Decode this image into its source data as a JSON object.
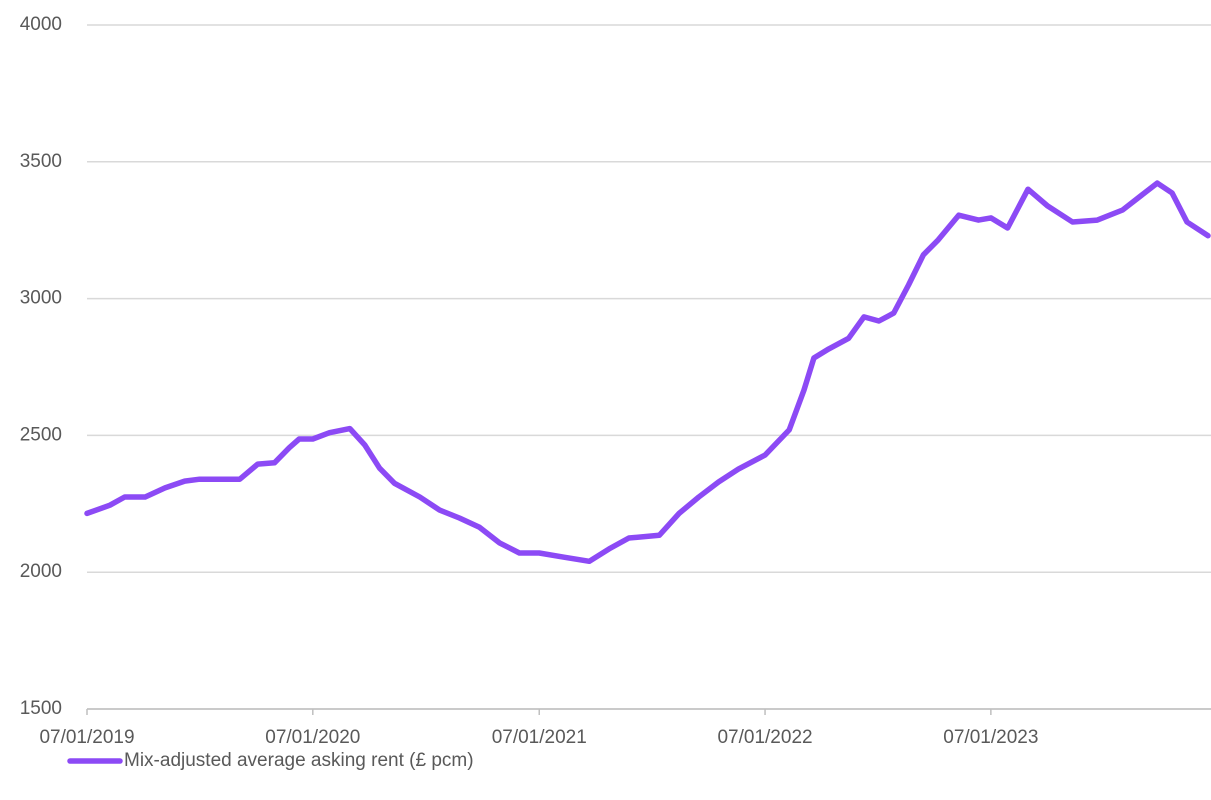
{
  "chart_data": {
    "type": "line",
    "x": [
      "07/01/2019",
      "13/02/2019",
      "09/03/2019",
      "11/04/2019",
      "13/05/2019",
      "14/06/2019",
      "08/07/2019",
      "11/09/2019",
      "10/10/2019",
      "06/11/2019",
      "30/11/2019",
      "16/12/2019",
      "07/01/2020",
      "03/02/2020",
      "07/03/2020",
      "31/03/2020",
      "24/04/2020",
      "18/05/2020",
      "28/06/2020",
      "30/07/2020",
      "31/08/2020",
      "02/10/2020",
      "04/11/2020",
      "06/12/2020",
      "07/01/2021",
      "16/02/2021",
      "29/03/2021",
      "30/04/2021",
      "01/06/2021",
      "20/07/2021",
      "21/08/2021",
      "22/09/2021",
      "24/10/2021",
      "25/11/2021",
      "07/01/2022",
      "15/02/2022",
      "11/03/2022",
      "27/03/2022",
      "20/04/2022",
      "22/05/2022",
      "16/06/2022",
      "10/07/2022",
      "03/08/2022",
      "27/08/2022",
      "20/09/2022",
      "14/10/2022",
      "16/11/2022",
      "18/12/2022",
      "07/01/2023",
      "03/02/2023",
      "08/03/2023",
      "09/04/2023",
      "19/05/2023",
      "28/06/2023",
      "08/08/2023",
      "09/09/2023",
      "03/10/2023",
      "27/10/2023",
      "20/11/2023",
      "24/12/2023"
    ],
    "series": [
      {
        "name": "Mix-adjusted average asking rent (£ pcm)",
        "color": "#8c4af5",
        "values": [
          2215,
          2245,
          2275,
          2275,
          2308,
          2333,
          2340,
          2340,
          2395,
          2400,
          2455,
          2487,
          2487,
          2510,
          2525,
          2465,
          2380,
          2325,
          2275,
          2227,
          2198,
          2165,
          2107,
          2070,
          2070,
          2055,
          2040,
          2085,
          2125,
          2135,
          2215,
          2275,
          2330,
          2377,
          2428,
          2520,
          2666,
          2783,
          2816,
          2855,
          2933,
          2918,
          2947,
          3050,
          3160,
          3215,
          3305,
          3287,
          3295,
          3258,
          3400,
          3338,
          3280,
          3287,
          3324,
          3380,
          3422,
          3386,
          3280,
          3230
        ]
      }
    ],
    "xlim": [
      "07/01/2019",
      "24/12/2023"
    ],
    "xticks": [
      "07/01/2019",
      "07/01/2020",
      "07/01/2021",
      "07/01/2022",
      "07/01/2023"
    ],
    "ylim": [
      1500,
      4000
    ],
    "yticks": [
      1500,
      2000,
      2500,
      3000,
      3500,
      4000
    ],
    "grid": true,
    "legend": "bottom-left"
  }
}
